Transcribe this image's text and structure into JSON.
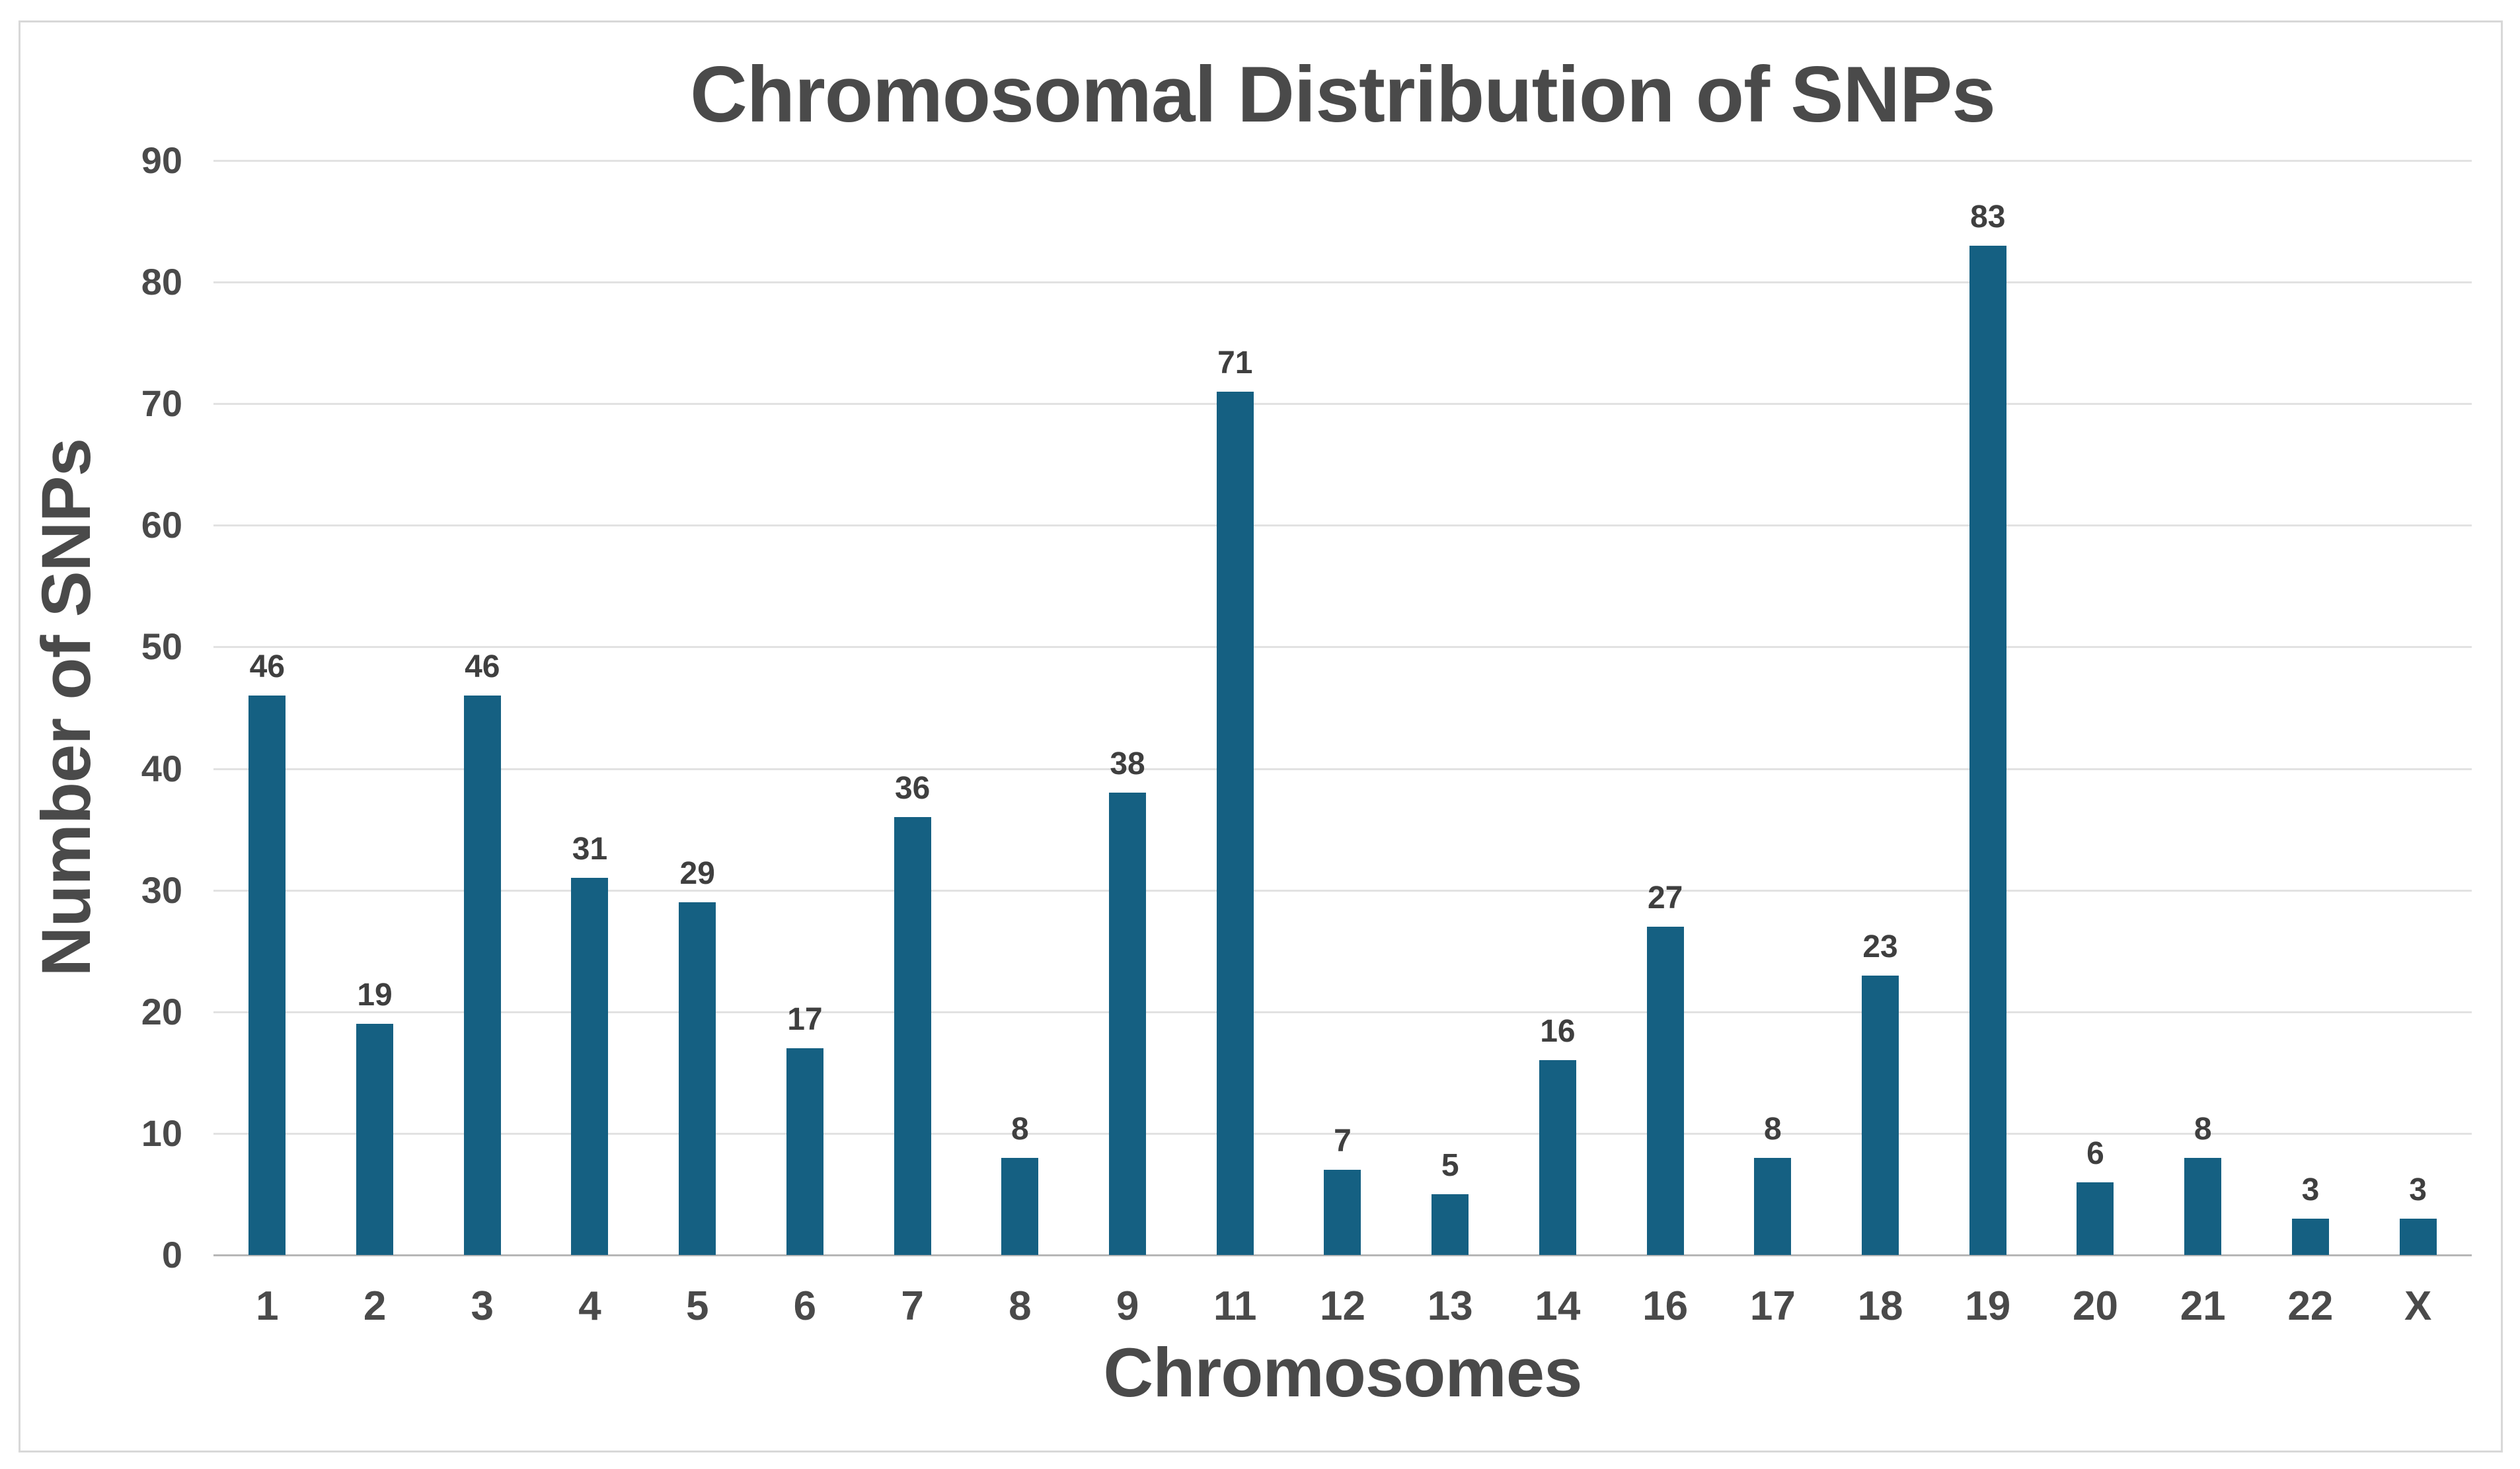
{
  "chart_data": {
    "type": "bar",
    "title": "Chromosomal Distribution of SNPs",
    "xlabel": "Chromosomes",
    "ylabel": "Number of SNPs",
    "categories": [
      "1",
      "2",
      "3",
      "4",
      "5",
      "6",
      "7",
      "8",
      "9",
      "11",
      "12",
      "13",
      "14",
      "16",
      "17",
      "18",
      "19",
      "20",
      "21",
      "22",
      "X"
    ],
    "values": [
      46,
      19,
      46,
      31,
      29,
      17,
      36,
      8,
      38,
      71,
      7,
      5,
      16,
      27,
      8,
      23,
      83,
      6,
      8,
      3,
      3
    ],
    "ylim": [
      0,
      90
    ],
    "y_ticks": [
      0,
      10,
      20,
      30,
      40,
      50,
      60,
      70,
      80,
      90
    ],
    "grid": "horizontal",
    "data_labels": true,
    "legend": "none"
  },
  "styles": {
    "bar_color": "#156082",
    "gridline_color": "#E2E2E2",
    "axis_line_color": "#B7B7B7",
    "frame_border_color": "#D8D8D8",
    "text_color": "#4A4A4A",
    "data_label_color": "#3F3F3F",
    "background": "#FFFFFF"
  }
}
